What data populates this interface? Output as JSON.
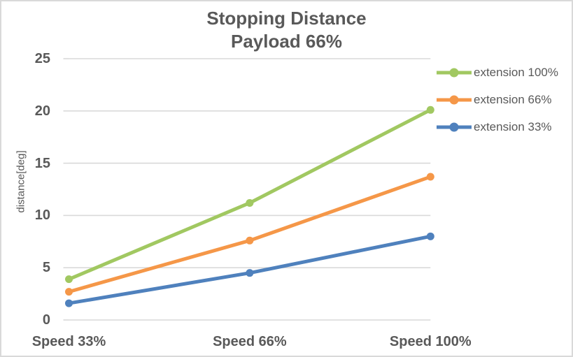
{
  "chart_data": {
    "type": "line",
    "title": "Stopping Distance",
    "subtitle": "Payload 66%",
    "ylabel": "distance[deg]",
    "xlabel": "",
    "categories": [
      "Speed 33%",
      "Speed 66%",
      "Speed 100%"
    ],
    "series": [
      {
        "name": "extension 100%",
        "color": "#A1C861",
        "values": [
          3.9,
          11.2,
          20.1
        ]
      },
      {
        "name": "extension 66%",
        "color": "#F59748",
        "values": [
          2.7,
          7.6,
          13.7
        ]
      },
      {
        "name": "extension 33%",
        "color": "#4F81BD",
        "values": [
          1.6,
          4.5,
          8.0
        ]
      }
    ],
    "ylim": [
      0,
      25
    ],
    "yticks": [
      0,
      5,
      10,
      15,
      20,
      25
    ],
    "grid": true,
    "legend_position": "right",
    "marker": "circle"
  },
  "colors": {
    "text": "#595959",
    "grid": "#D9D9D9",
    "border": "#D9D9D9",
    "background": "#FFFFFF"
  }
}
